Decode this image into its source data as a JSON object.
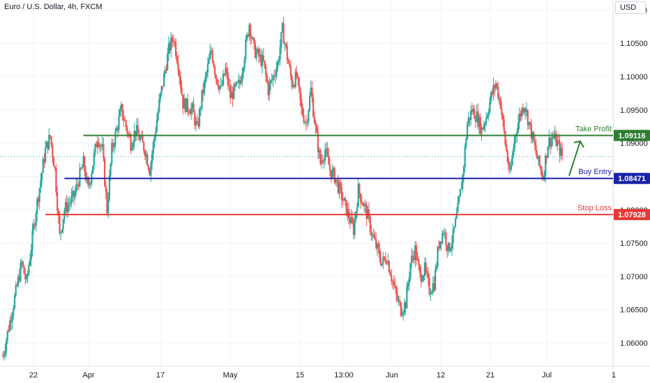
{
  "header": {
    "title": "Euro / U.S. Dollar, 4h, FXCM",
    "currency": "USD"
  },
  "colors": {
    "up": "#26a69a",
    "down": "#ef5350",
    "take_profit": "#2e7d32",
    "buy_entry": "#1a23a8",
    "stop_loss": "#e53935",
    "grid": "#f0f3fa",
    "axis_text": "#131722"
  },
  "chart_data": {
    "type": "candlestick",
    "symbol": "EURUSD",
    "timeframe": "4h",
    "ylim": [
      1.0565,
      1.1115
    ],
    "y_ticks": [
      "1.11000",
      "1.10500",
      "1.10000",
      "1.09500",
      "1.09000",
      "1.08500",
      "1.08000",
      "1.07500",
      "1.07000",
      "1.06500",
      "1.06000"
    ],
    "x_labels": [
      "22",
      "Apr",
      "17",
      "May",
      "15",
      "13:00",
      "Jun",
      "12",
      "21",
      "Jul",
      "1"
    ],
    "grid": true,
    "price_path": [
      [
        0,
        1.058
      ],
      [
        2,
        1.065
      ],
      [
        4,
        1.072
      ],
      [
        5,
        1.069
      ],
      [
        7,
        1.08
      ],
      [
        9,
        1.089
      ],
      [
        10,
        1.091
      ],
      [
        11,
        1.086
      ],
      [
        12,
        1.076
      ],
      [
        13,
        1.08
      ],
      [
        15,
        1.082
      ],
      [
        17,
        1.087
      ],
      [
        18,
        1.083
      ],
      [
        20,
        1.091
      ],
      [
        21,
        1.089
      ],
      [
        22,
        1.08
      ],
      [
        23,
        1.089
      ],
      [
        25,
        1.095
      ],
      [
        27,
        1.09
      ],
      [
        28,
        1.092
      ],
      [
        30,
        1.089
      ],
      [
        31,
        1.086
      ],
      [
        33,
        1.096
      ],
      [
        35,
        1.104
      ],
      [
        36,
        1.106
      ],
      [
        37,
        1.102
      ],
      [
        38,
        1.096
      ],
      [
        40,
        1.095
      ],
      [
        41,
        1.092
      ],
      [
        42,
        1.097
      ],
      [
        44,
        1.104
      ],
      [
        45,
        1.1
      ],
      [
        46,
        1.098
      ],
      [
        47,
        1.101
      ],
      [
        48,
        1.097
      ],
      [
        50,
        1.099
      ],
      [
        52,
        1.108
      ],
      [
        53,
        1.104
      ],
      [
        55,
        1.102
      ],
      [
        56,
        1.098
      ],
      [
        58,
        1.102
      ],
      [
        59,
        1.107
      ],
      [
        60,
        1.103
      ],
      [
        61,
        1.099
      ],
      [
        62,
        1.1
      ],
      [
        63,
        1.095
      ],
      [
        64,
        1.093
      ],
      [
        65,
        1.098
      ],
      [
        66,
        1.092
      ],
      [
        67,
        1.087
      ],
      [
        68,
        1.089
      ],
      [
        69,
        1.086
      ],
      [
        70,
        1.085
      ],
      [
        71,
        1.083
      ],
      [
        72,
        1.081
      ],
      [
        73,
        1.079
      ],
      [
        74,
        1.077
      ],
      [
        75,
        1.083
      ],
      [
        76,
        1.081
      ],
      [
        77,
        1.079
      ],
      [
        78,
        1.076
      ],
      [
        79,
        1.074
      ],
      [
        80,
        1.072
      ],
      [
        81,
        1.073
      ],
      [
        82,
        1.07
      ],
      [
        83,
        1.067
      ],
      [
        84,
        1.065
      ],
      [
        85,
        1.066
      ],
      [
        86,
        1.072
      ],
      [
        87,
        1.074
      ],
      [
        88,
        1.07
      ],
      [
        89,
        1.071
      ],
      [
        90,
        1.068
      ],
      [
        91,
        1.069
      ],
      [
        92,
        1.075
      ],
      [
        93,
        1.077
      ],
      [
        94,
        1.074
      ],
      [
        95,
        1.076
      ],
      [
        96,
        1.08
      ],
      [
        97,
        1.085
      ],
      [
        98,
        1.093
      ],
      [
        99,
        1.095
      ],
      [
        100,
        1.094
      ],
      [
        101,
        1.092
      ],
      [
        102,
        1.094
      ],
      [
        103,
        1.097
      ],
      [
        104,
        1.099
      ],
      [
        105,
        1.096
      ],
      [
        106,
        1.09
      ],
      [
        107,
        1.085
      ],
      [
        108,
        1.091
      ],
      [
        109,
        1.094
      ],
      [
        110,
        1.096
      ],
      [
        111,
        1.093
      ],
      [
        112,
        1.09
      ],
      [
        113,
        1.087
      ],
      [
        114,
        1.085
      ],
      [
        115,
        1.09
      ],
      [
        116,
        1.091
      ],
      [
        117,
        1.09
      ],
      [
        118,
        1.088
      ]
    ],
    "levels": [
      {
        "name": "Take Profit",
        "value": "1.09116",
        "start_x": 17
      },
      {
        "name": "Buy Entry",
        "value": "1.08471",
        "start_x": 13
      },
      {
        "name": "Stop Loss",
        "value": "1.07928",
        "start_x": 9
      }
    ],
    "current_price": 1.088,
    "annotation": "up arrow from Buy Entry toward Take Profit"
  }
}
